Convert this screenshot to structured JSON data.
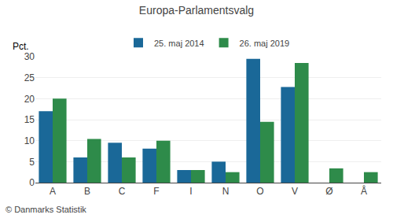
{
  "chart_data": {
    "type": "bar",
    "title": "Europa-Parlamentsvalg",
    "ylabel": "Pct.",
    "annotations": [
      "© Danmarks Statistik"
    ],
    "categories": [
      "A",
      "B",
      "C",
      "F",
      "I",
      "N",
      "O",
      "V",
      "Ø",
      "Å"
    ],
    "series": [
      {
        "name": "25. maj 2014",
        "color": "#1a6898",
        "values": [
          17.0,
          6.0,
          9.5,
          8.1,
          3.0,
          5.0,
          29.5,
          22.8,
          0.0,
          0.0
        ]
      },
      {
        "name": "26. maj 2019",
        "color": "#2e8b4a",
        "values": [
          20.0,
          10.4,
          6.0,
          10.0,
          3.0,
          2.5,
          14.5,
          28.5,
          3.4,
          2.5
        ]
      }
    ],
    "ylim": [
      0,
      30
    ],
    "yticks": [
      0,
      5,
      10,
      15,
      20,
      25,
      30
    ],
    "grid": true,
    "legend": "top"
  }
}
